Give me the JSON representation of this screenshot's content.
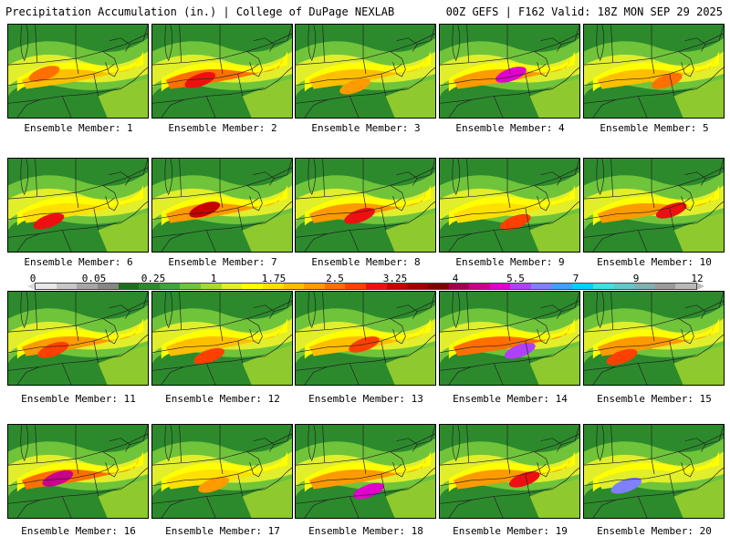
{
  "header": {
    "left": "Precipitation Accumulation (in.) | College of DuPage NEXLAB",
    "right": "00Z GEFS | F162 Valid: 18Z MON SEP 29 2025"
  },
  "colorbar": {
    "labels": [
      "0",
      "0.05",
      "0.25",
      "1",
      "1.75",
      "2.5",
      "3.25",
      "4",
      "5.5",
      "7",
      "9",
      "12"
    ],
    "colors": [
      "#e8e8e8",
      "#c8c8c8",
      "#a6a6a6",
      "#868686",
      "#1f6e1f",
      "#2c8a2c",
      "#3aa53a",
      "#70c43a",
      "#a8d930",
      "#e0ee2c",
      "#ffff00",
      "#ffe000",
      "#ffbf00",
      "#ff9a00",
      "#ff7000",
      "#ff4000",
      "#ee1010",
      "#c80000",
      "#a00000",
      "#800000",
      "#a00050",
      "#c8008c",
      "#e000d0",
      "#b040ff",
      "#8080ff",
      "#40a0ff",
      "#00d0ff",
      "#40e0e0",
      "#60c8c8",
      "#80b0b0",
      "#9a9a9a",
      "#b8b8b8"
    ]
  },
  "members": [
    {
      "label": "Ensemble Member: 1"
    },
    {
      "label": "Ensemble Member: 2"
    },
    {
      "label": "Ensemble Member: 3"
    },
    {
      "label": "Ensemble Member: 4"
    },
    {
      "label": "Ensemble Member: 5"
    },
    {
      "label": "Ensemble Member: 6"
    },
    {
      "label": "Ensemble Member: 7"
    },
    {
      "label": "Ensemble Member: 8"
    },
    {
      "label": "Ensemble Member: 9"
    },
    {
      "label": "Ensemble Member: 10"
    },
    {
      "label": "Ensemble Member: 11"
    },
    {
      "label": "Ensemble Member: 12"
    },
    {
      "label": "Ensemble Member: 13"
    },
    {
      "label": "Ensemble Member: 14"
    },
    {
      "label": "Ensemble Member: 15"
    },
    {
      "label": "Ensemble Member: 16"
    },
    {
      "label": "Ensemble Member: 17"
    },
    {
      "label": "Ensemble Member: 18"
    },
    {
      "label": "Ensemble Member: 19"
    },
    {
      "label": "Ensemble Member: 20"
    }
  ]
}
